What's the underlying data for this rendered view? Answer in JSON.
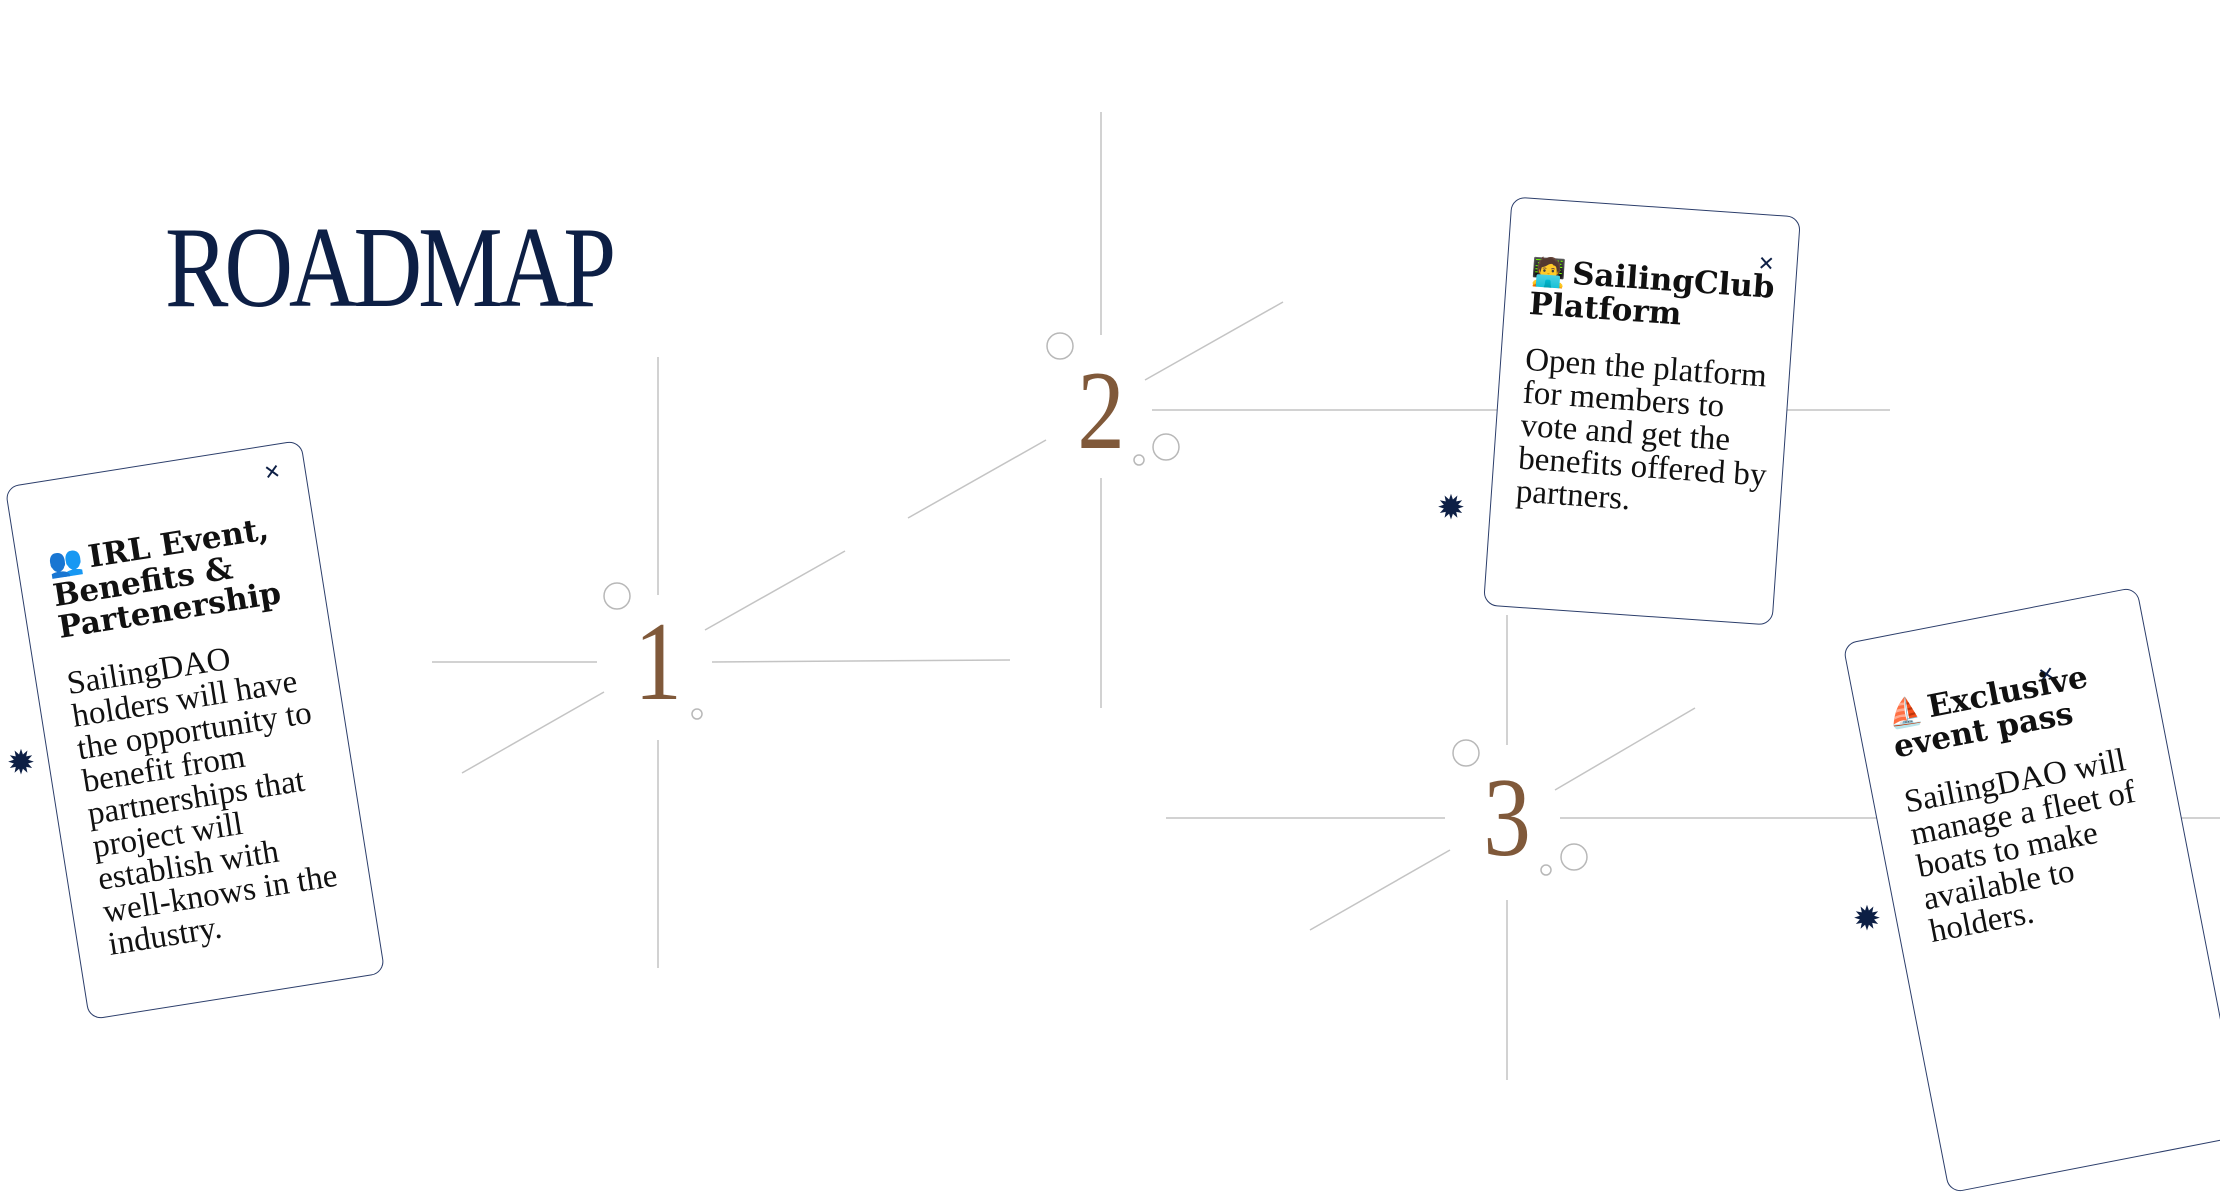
{
  "page": {
    "title": "ROADMAP"
  },
  "steps": [
    {
      "number": "1"
    },
    {
      "number": "2"
    },
    {
      "number": "3"
    }
  ],
  "cards": [
    {
      "icon": "people-icon",
      "emoji": "👥",
      "title": "IRL Event, Benefits & Partenership",
      "body": "SailingDAO holders will have the opportunity to benefit from partnerships that project will establish with well-knows in the industry."
    },
    {
      "icon": "technologist-icon",
      "emoji": "🧑‍💻",
      "title": "SailingClub Platform",
      "body": "Open the platform for members to vote and get the benefits offered by partners."
    },
    {
      "icon": "sailboat-icon",
      "emoji": "⛵",
      "title": "Exclusive event pass",
      "body": "SailingDAO will manage a fleet of boats to make available to holders."
    }
  ],
  "decorations": {
    "star_glyph": "✹",
    "small_star_glyph": "✕"
  },
  "colors": {
    "navy": "#0d1f45",
    "bronze": "#80593a",
    "line": "#bcbcbc"
  }
}
